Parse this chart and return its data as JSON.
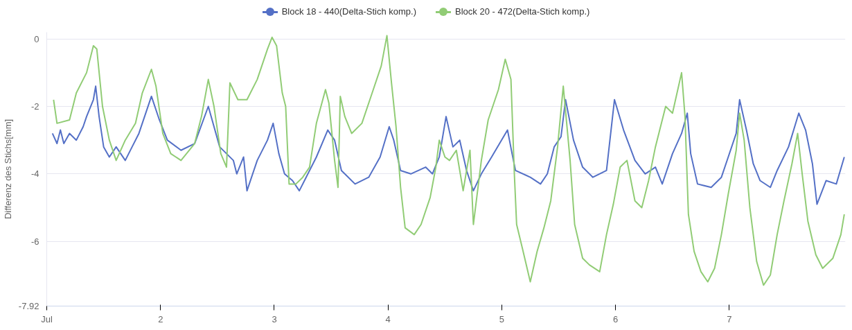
{
  "chart_data": {
    "type": "line",
    "ylabel": "Differenz des Stichs[mm]",
    "xlim": [
      1,
      8.02
    ],
    "ylim": [
      -7.92,
      0.2
    ],
    "xticks": [
      {
        "value": 1,
        "label": "Jul"
      },
      2,
      3,
      4,
      5,
      6,
      7
    ],
    "yticks": [
      0,
      -2,
      -4,
      -6,
      -7.92
    ],
    "grid": "y",
    "legend": "top",
    "marker": "none",
    "line_style": "solid",
    "series": [
      {
        "name": "Block 18 - 440(Delta-Stich komp.)",
        "color": "#5470c6",
        "x": [
          1.05,
          1.09,
          1.12,
          1.15,
          1.2,
          1.26,
          1.32,
          1.35,
          1.41,
          1.43,
          1.46,
          1.5,
          1.55,
          1.61,
          1.69,
          1.75,
          1.81,
          1.92,
          1.99,
          2.06,
          2.18,
          2.3,
          2.42,
          2.52,
          2.64,
          2.67,
          2.73,
          2.76,
          2.85,
          2.94,
          2.99,
          3.04,
          3.09,
          3.16,
          3.22,
          3.28,
          3.37,
          3.47,
          3.53,
          3.59,
          3.71,
          3.83,
          3.93,
          4.01,
          4.05,
          4.11,
          4.2,
          4.33,
          4.39,
          4.45,
          4.51,
          4.57,
          4.63,
          4.69,
          4.75,
          4.82,
          4.91,
          5.05,
          5.09,
          5.12,
          5.25,
          5.34,
          5.4,
          5.46,
          5.52,
          5.56,
          5.63,
          5.71,
          5.8,
          5.92,
          5.99,
          6.07,
          6.17,
          6.26,
          6.35,
          6.41,
          6.5,
          6.58,
          6.63,
          6.66,
          6.72,
          6.84,
          6.93,
          6.99,
          7.06,
          7.09,
          7.15,
          7.21,
          7.27,
          7.36,
          7.42,
          7.52,
          7.61,
          7.67,
          7.73,
          7.77,
          7.85,
          7.94,
          8.01
        ],
        "values": [
          -2.8,
          -3.1,
          -2.7,
          -3.1,
          -2.8,
          -3.0,
          -2.6,
          -2.3,
          -1.8,
          -1.4,
          -2.3,
          -3.2,
          -3.5,
          -3.2,
          -3.6,
          -3.2,
          -2.8,
          -1.7,
          -2.4,
          -3.0,
          -3.3,
          -3.1,
          -2.0,
          -3.2,
          -3.6,
          -4.0,
          -3.5,
          -4.5,
          -3.6,
          -3.0,
          -2.5,
          -3.4,
          -4.0,
          -4.2,
          -4.5,
          -4.1,
          -3.5,
          -2.7,
          -3.0,
          -3.9,
          -4.3,
          -4.1,
          -3.5,
          -2.6,
          -3.0,
          -3.9,
          -4.0,
          -3.8,
          -4.0,
          -3.5,
          -2.3,
          -3.2,
          -3.0,
          -3.9,
          -4.5,
          -4.0,
          -3.5,
          -2.7,
          -3.4,
          -3.9,
          -4.1,
          -4.3,
          -4.0,
          -3.2,
          -2.9,
          -1.8,
          -3.0,
          -3.8,
          -4.1,
          -3.9,
          -1.8,
          -2.7,
          -3.6,
          -4.0,
          -3.8,
          -4.3,
          -3.4,
          -2.8,
          -2.2,
          -3.4,
          -4.3,
          -4.4,
          -4.1,
          -3.5,
          -2.8,
          -1.8,
          -2.7,
          -3.7,
          -4.2,
          -4.4,
          -3.9,
          -3.2,
          -2.2,
          -2.7,
          -3.7,
          -4.9,
          -4.2,
          -4.3,
          -3.5
        ]
      },
      {
        "name": "Block 20 - 472(Delta-Stich komp.)",
        "color": "#91cc75",
        "x": [
          1.06,
          1.09,
          1.2,
          1.26,
          1.35,
          1.41,
          1.44,
          1.49,
          1.55,
          1.61,
          1.69,
          1.78,
          1.84,
          1.92,
          1.96,
          2.02,
          2.09,
          2.18,
          2.3,
          2.36,
          2.42,
          2.47,
          2.53,
          2.58,
          2.61,
          2.68,
          2.76,
          2.85,
          2.94,
          2.98,
          3.02,
          3.07,
          3.1,
          3.13,
          3.19,
          3.25,
          3.31,
          3.37,
          3.45,
          3.48,
          3.53,
          3.56,
          3.58,
          3.62,
          3.68,
          3.77,
          3.87,
          3.94,
          3.99,
          4.03,
          4.07,
          4.11,
          4.15,
          4.23,
          4.29,
          4.37,
          4.42,
          4.45,
          4.5,
          4.54,
          4.6,
          4.66,
          4.72,
          4.75,
          4.82,
          4.88,
          4.97,
          5.03,
          5.08,
          5.11,
          5.13,
          5.18,
          5.25,
          5.31,
          5.37,
          5.43,
          5.49,
          5.54,
          5.6,
          5.64,
          5.71,
          5.77,
          5.86,
          5.92,
          5.98,
          6.04,
          6.1,
          6.17,
          6.23,
          6.29,
          6.35,
          6.44,
          6.5,
          6.58,
          6.61,
          6.64,
          6.69,
          6.75,
          6.81,
          6.87,
          6.93,
          6.99,
          7.06,
          7.09,
          7.13,
          7.18,
          7.24,
          7.3,
          7.36,
          7.42,
          7.48,
          7.55,
          7.6,
          7.64,
          7.69,
          7.76,
          7.82,
          7.91,
          7.98,
          8.01
        ],
        "values": [
          -1.8,
          -2.5,
          -2.4,
          -1.6,
          -1.0,
          -0.2,
          -0.3,
          -2.0,
          -3.0,
          -3.6,
          -3.0,
          -2.5,
          -1.6,
          -0.9,
          -1.4,
          -2.8,
          -3.4,
          -3.6,
          -3.1,
          -2.3,
          -1.2,
          -2.0,
          -3.4,
          -3.8,
          -1.3,
          -1.8,
          -1.8,
          -1.2,
          -0.3,
          0.05,
          -0.2,
          -1.6,
          -2.0,
          -4.3,
          -4.3,
          -4.1,
          -3.8,
          -2.5,
          -1.5,
          -1.9,
          -3.6,
          -4.4,
          -1.7,
          -2.3,
          -2.8,
          -2.5,
          -1.5,
          -0.8,
          0.1,
          -1.3,
          -2.6,
          -4.4,
          -5.6,
          -5.8,
          -5.5,
          -4.7,
          -3.8,
          -3.0,
          -3.5,
          -3.6,
          -3.3,
          -4.5,
          -3.3,
          -5.5,
          -3.6,
          -2.4,
          -1.5,
          -0.6,
          -1.2,
          -4.0,
          -5.5,
          -6.2,
          -7.2,
          -6.3,
          -5.6,
          -4.8,
          -3.2,
          -1.4,
          -3.6,
          -5.5,
          -6.5,
          -6.7,
          -6.9,
          -5.8,
          -4.9,
          -3.8,
          -3.6,
          -4.8,
          -5.0,
          -4.2,
          -3.2,
          -2.0,
          -2.2,
          -1.0,
          -2.3,
          -5.2,
          -6.3,
          -6.9,
          -7.2,
          -6.8,
          -5.8,
          -4.6,
          -3.3,
          -2.2,
          -3.0,
          -5.0,
          -6.6,
          -7.3,
          -7.0,
          -5.8,
          -4.8,
          -3.7,
          -2.8,
          -4.0,
          -5.4,
          -6.4,
          -6.8,
          -6.5,
          -5.8,
          -5.2
        ]
      }
    ]
  }
}
